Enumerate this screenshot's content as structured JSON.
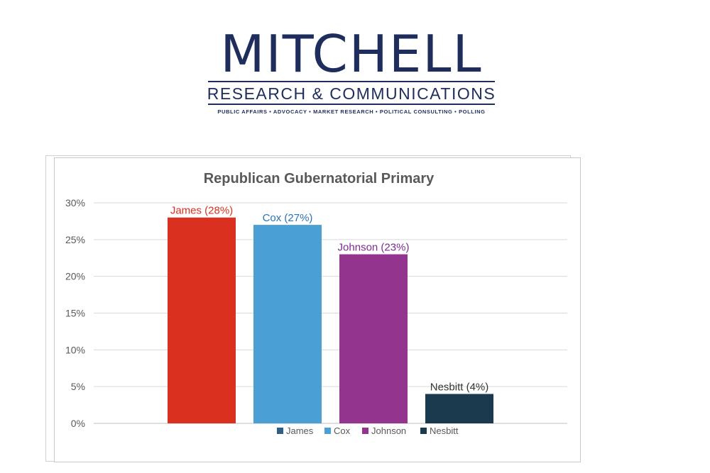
{
  "logo": {
    "name": "MITCHELL",
    "subtitle": "RESEARCH & COMMUNICATIONS",
    "tagline": "PUBLIC AFFAIRS • ADVOCACY • MARKET RESEARCH • POLITICAL CONSULTING • POLLING",
    "color": "#1f2d5c"
  },
  "chart_data": {
    "type": "bar",
    "title": "Republican Gubernatorial Primary",
    "xlabel": "",
    "ylabel": "",
    "categories": [
      "James",
      "Cox",
      "Johnson",
      "Nesbitt"
    ],
    "values": [
      28,
      27,
      23,
      4
    ],
    "data_labels": [
      "James (28%)",
      "Cox (27%)",
      "Johnson (23%)",
      "Nesbitt (4%)"
    ],
    "colors": [
      "#d9301f",
      "#4a9fd4",
      "#93358f",
      "#1c3a4e"
    ],
    "label_colors": [
      "#d9301f",
      "#2a72b8",
      "#7d2a8e",
      "#333333"
    ],
    "legend": {
      "placement": "bottom",
      "entries": [
        "James",
        "Cox",
        "Johnson",
        "Nesbitt"
      ],
      "colors": [
        "#2e5f86",
        "#4a9fd4",
        "#93358f",
        "#1c3a4e"
      ]
    },
    "ylim": [
      0,
      30
    ],
    "yticks": [
      0,
      5,
      10,
      15,
      20,
      25,
      30
    ],
    "ytick_labels": [
      "0%",
      "5%",
      "10%",
      "15%",
      "20%",
      "25%",
      "30%"
    ],
    "grid": true
  }
}
